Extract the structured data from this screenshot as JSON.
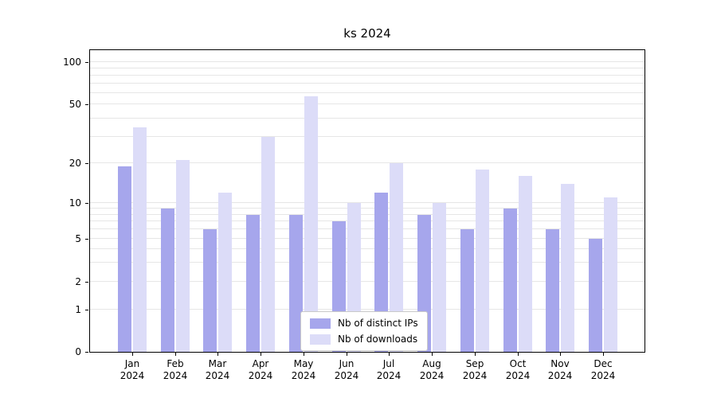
{
  "title": "ks 2024",
  "chart_data": {
    "type": "bar",
    "title": "ks 2024",
    "categories": [
      "Jan",
      "Feb",
      "Mar",
      "Apr",
      "May",
      "Jun",
      "Jul",
      "Aug",
      "Sep",
      "Oct",
      "Nov",
      "Dec"
    ],
    "x_axis": {
      "year": "2024"
    },
    "y_axis": {
      "scale": "symlog",
      "ticks": [
        0,
        1,
        2,
        5,
        10,
        20,
        50,
        100
      ],
      "minor_gridlines": [
        1,
        2,
        3,
        4,
        5,
        6,
        7,
        8,
        9,
        10,
        20,
        30,
        40,
        50,
        60,
        70,
        80,
        90,
        100
      ],
      "ylim": [
        0,
        120
      ]
    },
    "series": [
      {
        "name": "Nb of distinct IPs",
        "color": "#a6a6ec",
        "values": [
          19,
          9,
          6,
          8,
          8,
          7,
          12,
          8,
          6,
          9,
          6,
          5
        ]
      },
      {
        "name": "Nb of downloads",
        "color": "#dcdcf8",
        "values": [
          35,
          21,
          12,
          30,
          57,
          10,
          20,
          10,
          18,
          16,
          14,
          11
        ]
      }
    ],
    "legend": {
      "position": "lower center",
      "labels": [
        "Nb of distinct IPs",
        "Nb of downloads"
      ]
    },
    "grid": true,
    "colors": {
      "gridline": "#e6e6e6",
      "spine": "#000000",
      "background": "#ffffff"
    }
  }
}
